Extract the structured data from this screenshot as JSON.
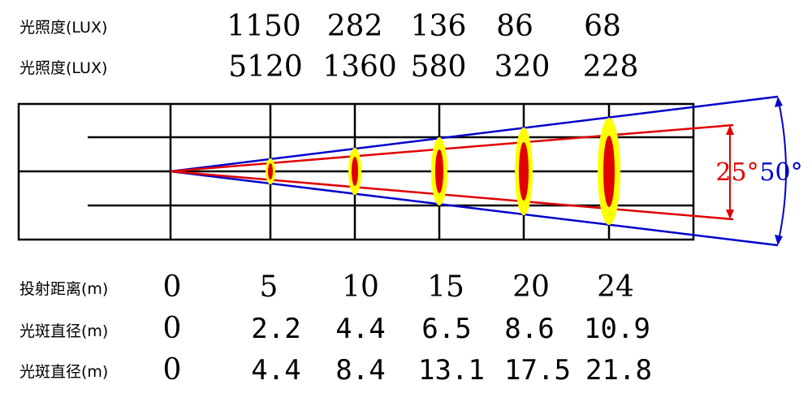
{
  "rows_top": [
    {
      "label": "光照度(LUX)",
      "values": [
        "1150",
        "282",
        "136",
        "86",
        "68"
      ]
    },
    {
      "label": "光照度(LUX)",
      "values": [
        "5120",
        "1360",
        "580",
        "320",
        "228"
      ]
    }
  ],
  "rows_bottom": [
    {
      "label": "投射距离(m)",
      "values": [
        "0",
        "5",
        "10",
        "15",
        "20",
        "24"
      ]
    },
    {
      "label": "光斑直径(m)",
      "values": [
        "0",
        "2.2",
        "4.4",
        "6.5",
        "8.6",
        "10.9"
      ]
    },
    {
      "label": "光斑直径(m)",
      "values": [
        "0",
        "4.4",
        "8.4",
        "13.1",
        "17.5",
        "21.8"
      ]
    }
  ],
  "angles": {
    "narrow": "25°",
    "wide": "50°"
  },
  "colors": {
    "narrow_beam": "#e00000",
    "wide_beam": "#0000cc",
    "spot_outer": "#ffff00",
    "spot_inner": "#e00000",
    "grid": "#000000"
  }
}
